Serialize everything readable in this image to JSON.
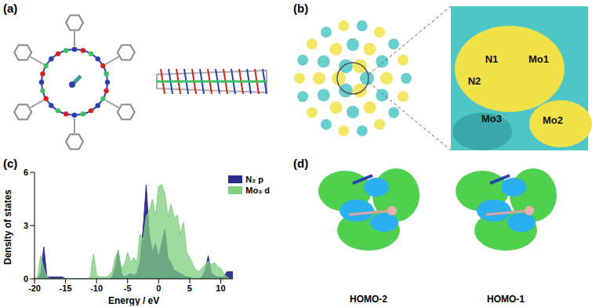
{
  "panels": {
    "a": {
      "label": "(a)"
    },
    "b": {
      "label": "(b)",
      "atom_labels": [
        "N1",
        "N2",
        "Mo1",
        "Mo3",
        "Mo2"
      ]
    },
    "c": {
      "label": "(c)"
    },
    "d": {
      "label": "(d)",
      "captions": [
        "HOMO-2",
        "HOMO-1"
      ]
    }
  },
  "chart_data": {
    "type": "area",
    "xlabel": "Energy / eV",
    "ylabel": "Density of states",
    "xlim": [
      -20,
      12
    ],
    "xticks": [
      -20,
      -15,
      -10,
      -5,
      0,
      5,
      10
    ],
    "ylim": [
      0,
      6
    ],
    "yticks": [
      0,
      3,
      6
    ],
    "legend": "top-right",
    "x": [
      -20,
      -19.5,
      -19,
      -18.5,
      -18,
      -17.5,
      -17,
      -16.5,
      -16,
      -15.5,
      -15,
      -14.5,
      -14,
      -13.5,
      -13,
      -12.5,
      -12,
      -11.5,
      -11,
      -10.5,
      -10,
      -9.5,
      -9,
      -8.5,
      -8,
      -7.5,
      -7,
      -6.5,
      -6,
      -5.5,
      -5,
      -4.5,
      -4,
      -3.5,
      -3,
      -2.5,
      -2,
      -1.5,
      -1,
      -0.5,
      0,
      0.5,
      1,
      1.5,
      2,
      2.5,
      3,
      3.5,
      4,
      4.5,
      5,
      5.5,
      6,
      6.5,
      7,
      7.5,
      8,
      8.5,
      9,
      9.5,
      10,
      10.5,
      11,
      11.5,
      12
    ],
    "series": [
      {
        "name": "N₂ p",
        "color": "#2b2b8f",
        "values": [
          0,
          0,
          0.3,
          1.8,
          0.1,
          0.1,
          0.1,
          0.1,
          0.1,
          0.1,
          0,
          0,
          0,
          0,
          0,
          0,
          0,
          0,
          0,
          0,
          0,
          0,
          0,
          0,
          0,
          0.1,
          0.6,
          1.6,
          0.3,
          0.1,
          0.2,
          0.3,
          0.2,
          0.3,
          1.0,
          2.8,
          5.3,
          2.5,
          1.5,
          2.0,
          1.2,
          2.0,
          2.8,
          1.2,
          0.9,
          0.5,
          0.4,
          0.3,
          0.2,
          0.1,
          0.1,
          0,
          0,
          0,
          0.1,
          0.5,
          1.3,
          0.3,
          0.2,
          0.1,
          0.1,
          0.1,
          0.4,
          0.4,
          0.4
        ]
      },
      {
        "name": "Mo₃ d",
        "color": "#7fcf7f",
        "values": [
          0,
          0.1,
          1.3,
          0.6,
          0.1,
          0,
          0,
          0,
          0,
          0,
          0,
          0,
          0,
          0,
          0,
          0,
          0,
          0,
          0.1,
          1.4,
          0.2,
          0.1,
          0.1,
          0.1,
          0.2,
          0.4,
          1.2,
          1.6,
          0.6,
          0.8,
          1.5,
          0.9,
          1.2,
          0.9,
          2.5,
          2.2,
          3.5,
          3.8,
          4.5,
          3.5,
          5.2,
          5.3,
          4.8,
          3.5,
          4.2,
          3.4,
          3.6,
          2.5,
          3.2,
          1.5,
          1.2,
          0.8,
          0.5,
          0.4,
          0.6,
          0.8,
          1.0,
          0.8,
          0.9,
          0.7,
          0.6,
          0.3,
          0.1,
          0,
          0
        ]
      }
    ]
  }
}
